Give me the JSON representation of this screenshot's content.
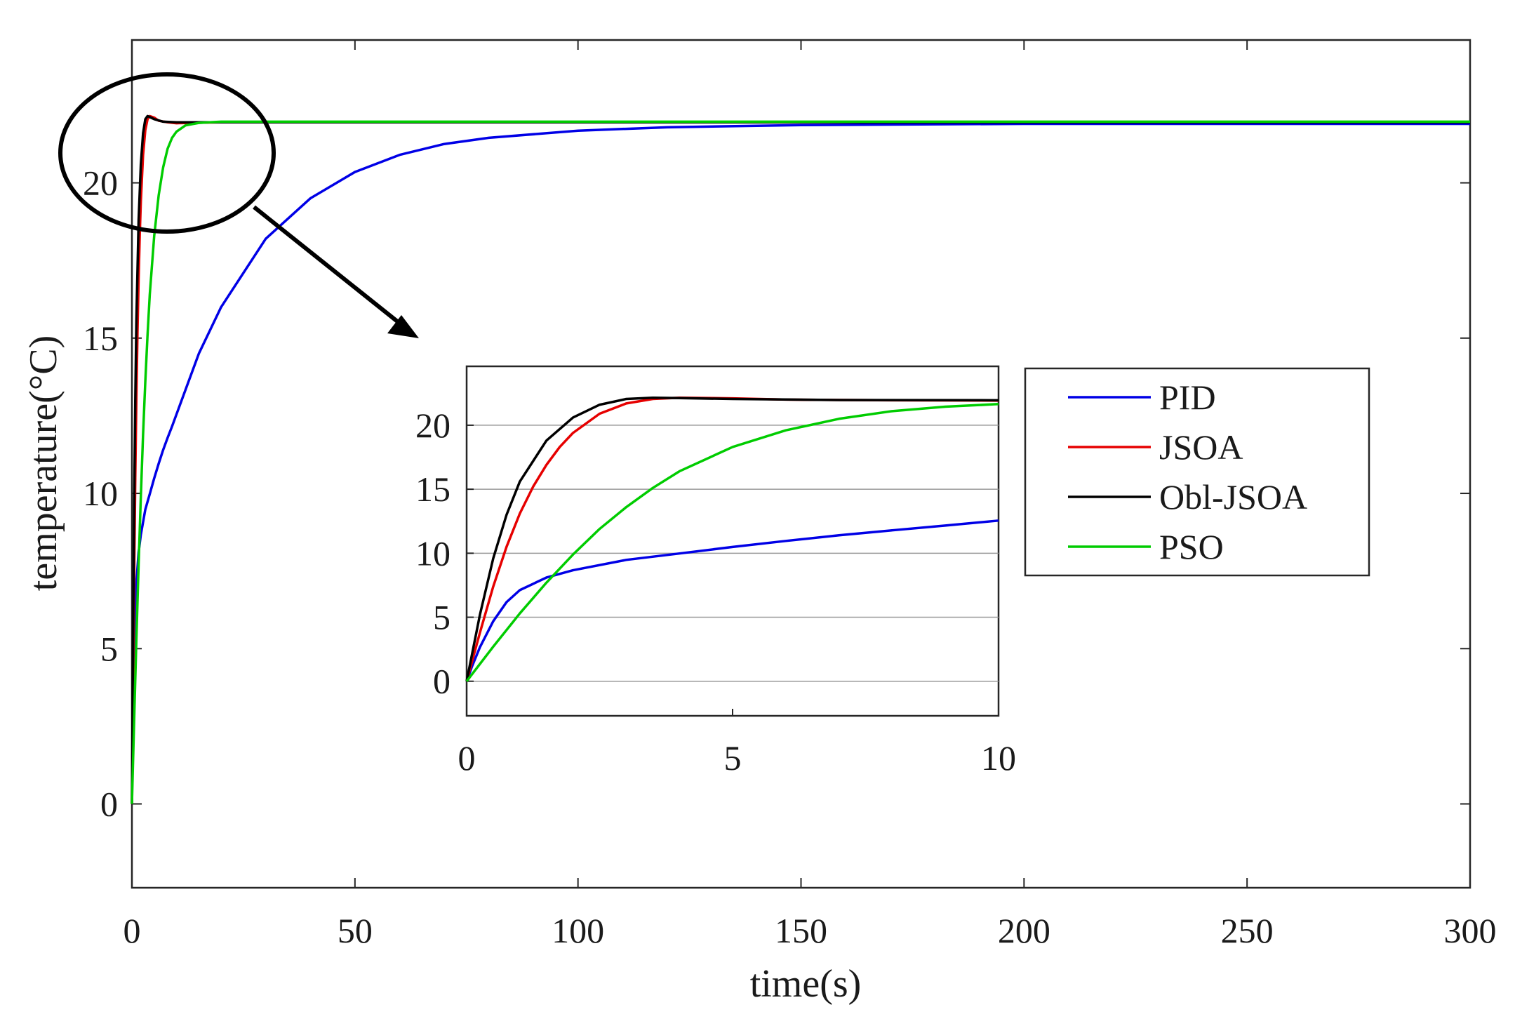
{
  "chart_data": {
    "type": "line",
    "main": {
      "xlabel": "time(s)",
      "ylabel": "temperature(°C)",
      "xlim": [
        0,
        300
      ],
      "ylim": [
        -2.7,
        24.6
      ],
      "xticks": [
        0,
        50,
        100,
        150,
        200,
        250,
        300
      ],
      "yticks": [
        0,
        5,
        10,
        15,
        20
      ],
      "grid": false
    },
    "inset": {
      "xlim": [
        0,
        10
      ],
      "ylim": [
        -2.7,
        24.6
      ],
      "xticks": [
        0,
        5,
        10
      ],
      "yticks": [
        0,
        5,
        10,
        15,
        20
      ],
      "grid": "horizontal"
    },
    "legend": {
      "position": "right, beside inset",
      "entries": [
        "PID",
        "JSOA",
        "Obl-JSOA",
        "PSO"
      ]
    },
    "annotation": "ellipse around initial transient with arrow pointing to zoomed inset",
    "series": [
      {
        "name": "PID",
        "color": "#0000e6",
        "points": [
          [
            0,
            0
          ],
          [
            0.1,
            1.15
          ],
          [
            0.25,
            2.66
          ],
          [
            0.5,
            4.69
          ],
          [
            0.75,
            6.18
          ],
          [
            1,
            7.12
          ],
          [
            1.5,
            8.1
          ],
          [
            2,
            8.67
          ],
          [
            3,
            9.48
          ],
          [
            4,
            9.98
          ],
          [
            5,
            10.49
          ],
          [
            6,
            10.96
          ],
          [
            7,
            11.4
          ],
          [
            8,
            11.79
          ],
          [
            9,
            12.16
          ],
          [
            10,
            12.55
          ],
          [
            15,
            14.5
          ],
          [
            20,
            16
          ],
          [
            30,
            18.2
          ],
          [
            40,
            19.5
          ],
          [
            50,
            20.35
          ],
          [
            60,
            20.9
          ],
          [
            70,
            21.25
          ],
          [
            80,
            21.45
          ],
          [
            100,
            21.68
          ],
          [
            120,
            21.79
          ],
          [
            150,
            21.86
          ],
          [
            200,
            21.9
          ],
          [
            300,
            21.9
          ]
        ]
      },
      {
        "name": "JSOA",
        "color": "#e60000",
        "points": [
          [
            0,
            0
          ],
          [
            0.25,
            3.8
          ],
          [
            0.5,
            7.4
          ],
          [
            0.75,
            10.5
          ],
          [
            1,
            13.1
          ],
          [
            1.25,
            15.2
          ],
          [
            1.5,
            16.9
          ],
          [
            1.75,
            18.3
          ],
          [
            2,
            19.4
          ],
          [
            2.5,
            20.9
          ],
          [
            3,
            21.7
          ],
          [
            3.5,
            22.05
          ],
          [
            4,
            22.15
          ],
          [
            5,
            22.1
          ],
          [
            6,
            22.0
          ],
          [
            8,
            21.95
          ],
          [
            10,
            21.92
          ],
          [
            20,
            21.95
          ],
          [
            300,
            21.95
          ]
        ]
      },
      {
        "name": "Obl-JSOA",
        "color": "#000000",
        "points": [
          [
            0,
            0
          ],
          [
            0.25,
            5.2
          ],
          [
            0.5,
            9.6
          ],
          [
            0.75,
            13.0
          ],
          [
            1,
            15.6
          ],
          [
            1.5,
            18.8
          ],
          [
            2,
            20.6
          ],
          [
            2.5,
            21.6
          ],
          [
            3,
            22.05
          ],
          [
            3.5,
            22.15
          ],
          [
            4,
            22.12
          ],
          [
            5,
            22.05
          ],
          [
            7,
            21.97
          ],
          [
            10,
            21.95
          ],
          [
            20,
            21.95
          ],
          [
            300,
            21.95
          ]
        ]
      },
      {
        "name": "PSO",
        "color": "#00cc00",
        "points": [
          [
            0,
            0
          ],
          [
            0.5,
            2.7
          ],
          [
            1,
            5.3
          ],
          [
            1.5,
            7.7
          ],
          [
            2,
            9.9
          ],
          [
            2.5,
            11.9
          ],
          [
            3,
            13.6
          ],
          [
            3.5,
            15.1
          ],
          [
            4,
            16.4
          ],
          [
            5,
            18.3
          ],
          [
            6,
            19.6
          ],
          [
            7,
            20.5
          ],
          [
            8,
            21.1
          ],
          [
            9,
            21.45
          ],
          [
            10,
            21.65
          ],
          [
            12,
            21.85
          ],
          [
            15,
            21.93
          ],
          [
            20,
            21.97
          ],
          [
            300,
            21.97
          ]
        ]
      }
    ]
  }
}
